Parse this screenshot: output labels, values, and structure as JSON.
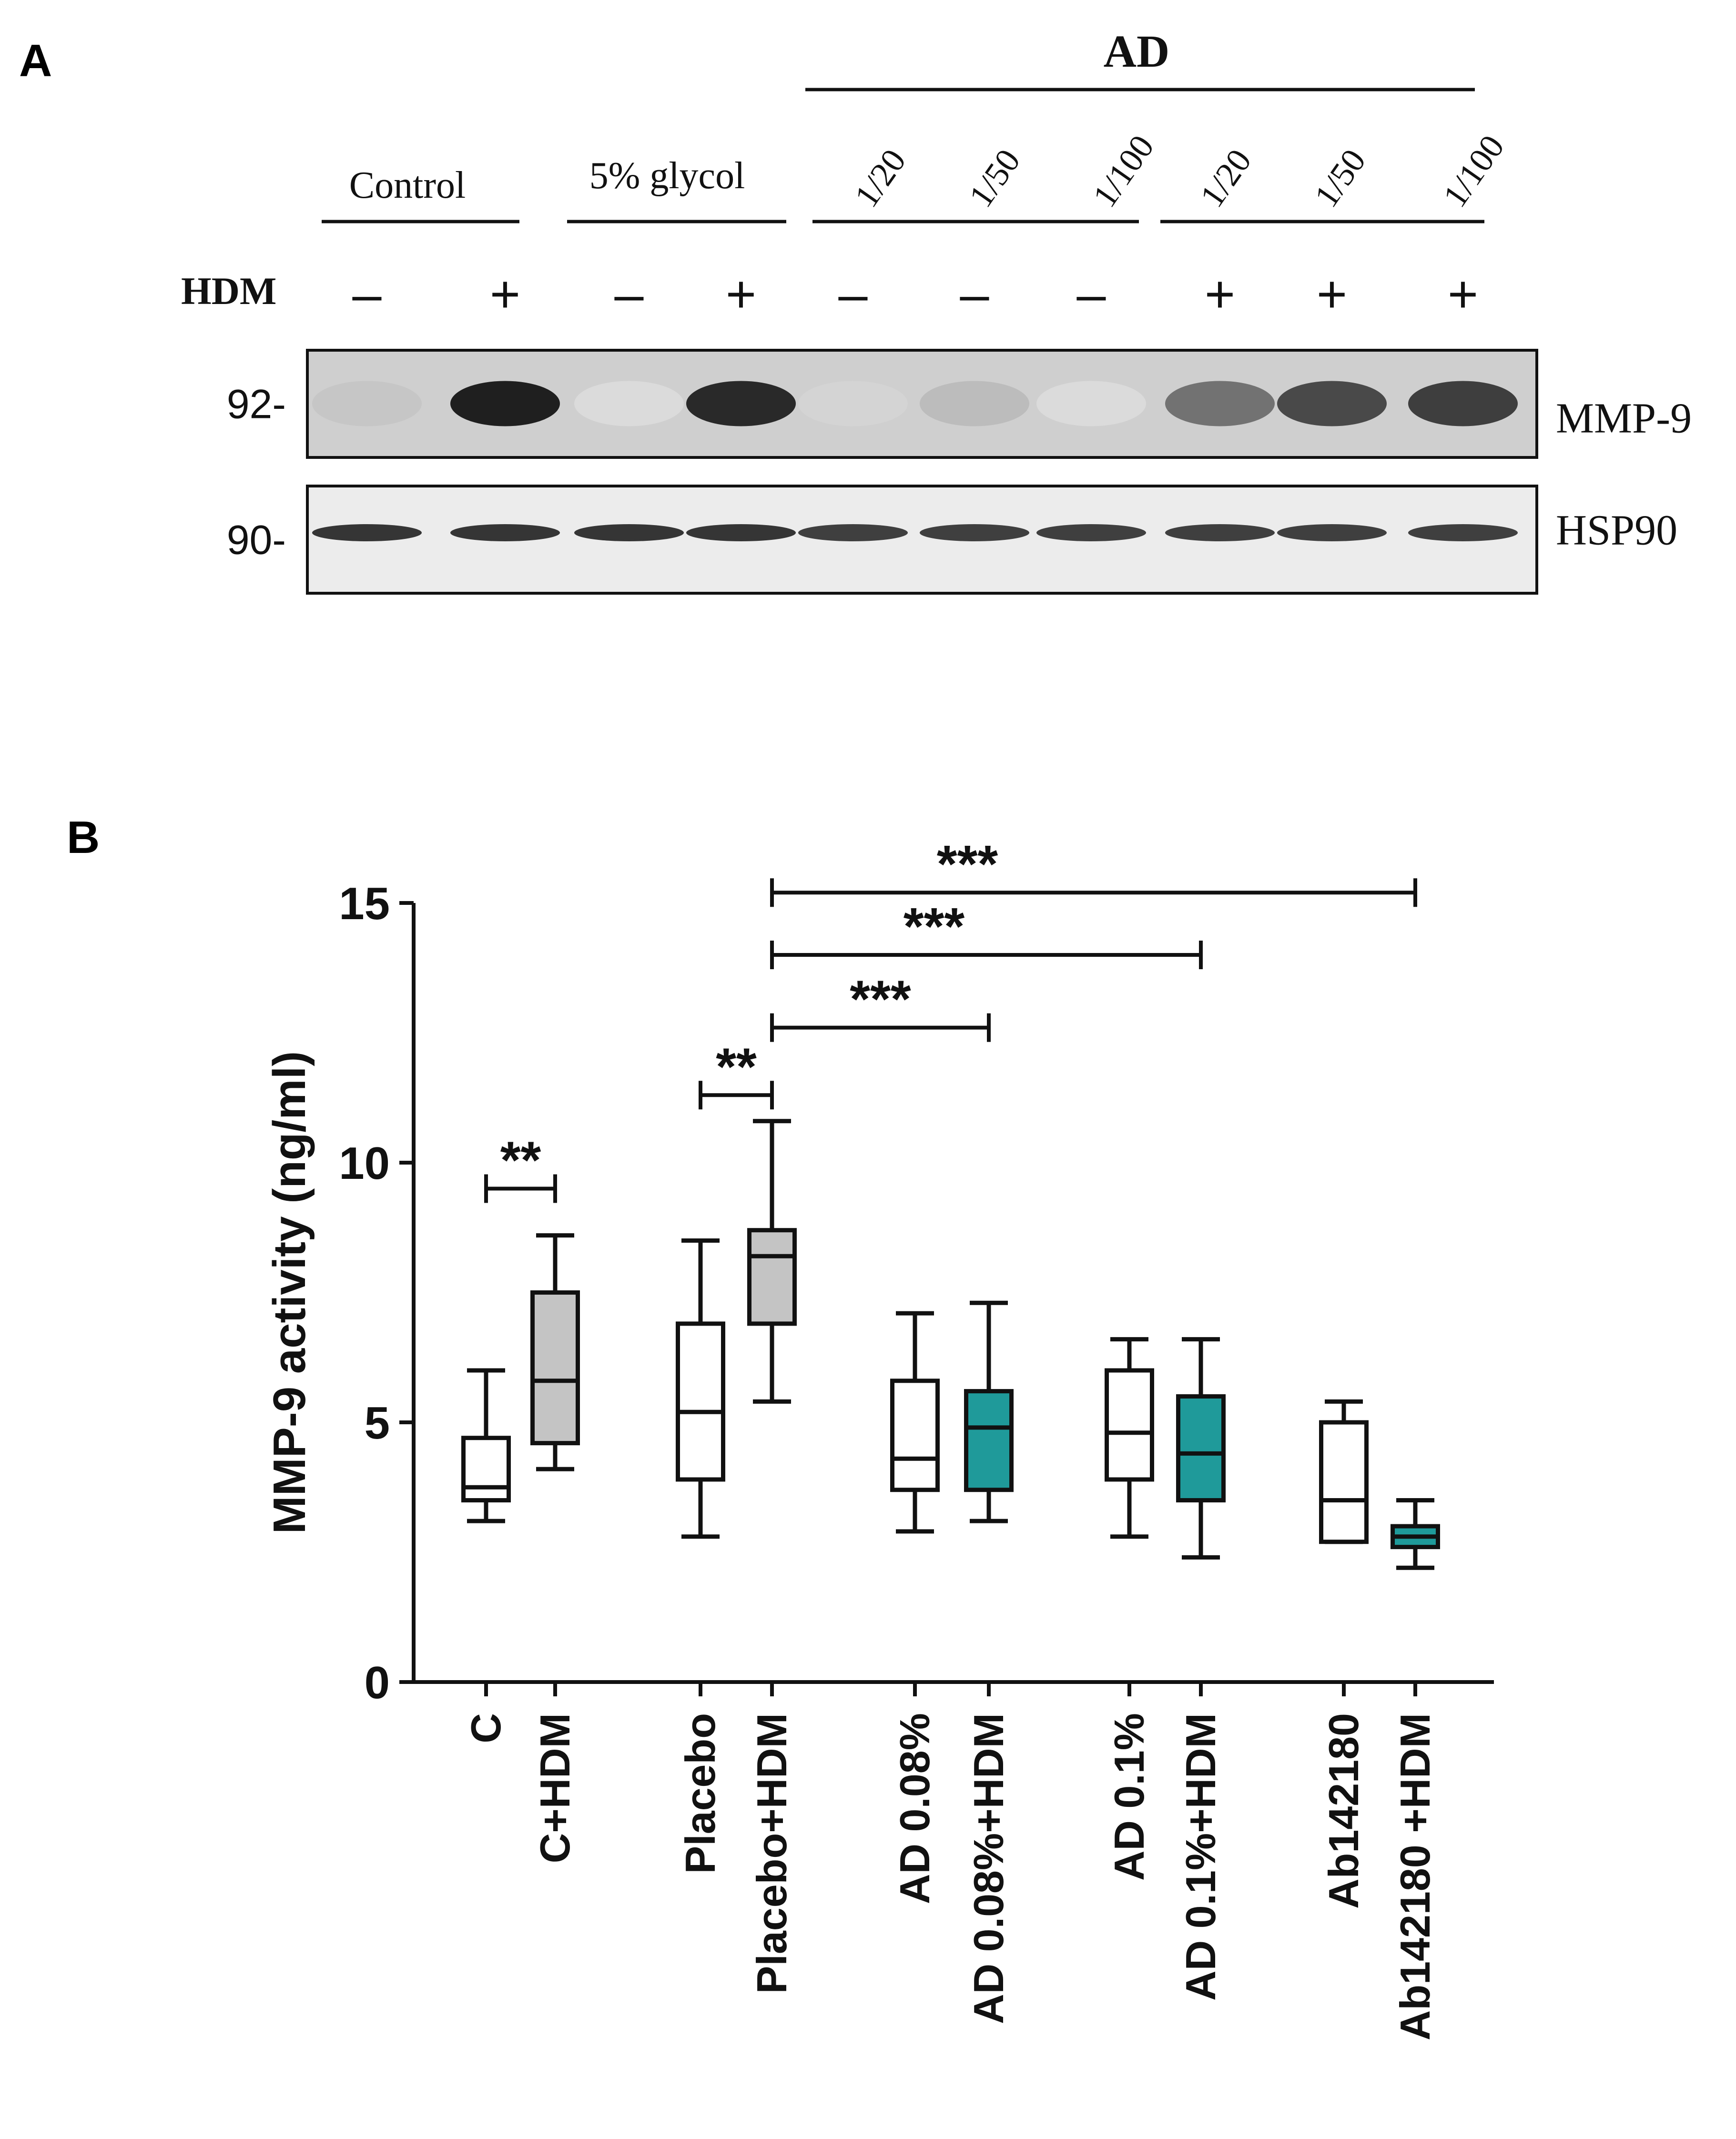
{
  "panel_a": {
    "letter": "A",
    "top_group_label": "AD",
    "groups": [
      "Control",
      "5% glycol"
    ],
    "dilutions": [
      "1/20",
      "1/50",
      "1/100",
      "1/20",
      "1/50",
      "1/100"
    ],
    "hdm_label": "HDM",
    "hdm_signs": [
      "–",
      "+",
      "–",
      "+",
      "–",
      "–",
      "–",
      "+",
      "+",
      "+"
    ],
    "blots": [
      {
        "marker": "92-",
        "protein": "MMP-9",
        "band_intensity": [
          0.15,
          0.95,
          0.05,
          0.9,
          0.08,
          0.2,
          0.05,
          0.55,
          0.75,
          0.8
        ]
      },
      {
        "marker": "90-",
        "protein": "HSP90",
        "band_intensity": [
          0.85,
          0.85,
          0.85,
          0.85,
          0.8,
          0.8,
          0.8,
          0.8,
          0.8,
          0.8
        ]
      }
    ]
  },
  "panel_b": {
    "letter": "B"
  },
  "chart_data": {
    "type": "box",
    "title": "",
    "xlabel": "",
    "ylabel": "MMP-9 activity (ng/ml)",
    "ylim": [
      0,
      15
    ],
    "yticks": [
      0,
      5,
      10,
      15
    ],
    "grid": false,
    "colors": {
      "white": "#ffffff",
      "grey": "#c4c4c4",
      "teal": "#1f9a9a",
      "teal_light": "#2aa7a7"
    },
    "categories": [
      "C",
      "C+HDM",
      "Placebo",
      "Placebo+HDM",
      "AD 0.08%",
      "AD 0.08%+HDM",
      "AD 0.1%",
      "AD 0.1%+HDM",
      "Ab142180",
      "Ab142180 +HDM"
    ],
    "boxes": [
      {
        "label": "C",
        "min": 3.1,
        "q1": 3.5,
        "median": 3.75,
        "q3": 4.7,
        "max": 6.0,
        "fill": "white"
      },
      {
        "label": "C+HDM",
        "min": 4.1,
        "q1": 4.6,
        "median": 5.8,
        "q3": 7.5,
        "max": 8.6,
        "fill": "grey"
      },
      {
        "label": "Placebo",
        "min": 2.8,
        "q1": 3.9,
        "median": 5.2,
        "q3": 6.9,
        "max": 8.5,
        "fill": "white"
      },
      {
        "label": "Placebo+HDM",
        "min": 5.4,
        "q1": 6.9,
        "median": 8.2,
        "q3": 8.7,
        "max": 10.8,
        "fill": "grey"
      },
      {
        "label": "AD 0.08%",
        "min": 2.9,
        "q1": 3.7,
        "median": 4.3,
        "q3": 5.8,
        "max": 7.1,
        "fill": "white"
      },
      {
        "label": "AD 0.08%+HDM",
        "min": 3.1,
        "q1": 3.7,
        "median": 4.9,
        "q3": 5.6,
        "max": 7.3,
        "fill": "teal"
      },
      {
        "label": "AD 0.1%",
        "min": 2.8,
        "q1": 3.9,
        "median": 4.8,
        "q3": 6.0,
        "max": 6.6,
        "fill": "white"
      },
      {
        "label": "AD 0.1%+HDM",
        "min": 2.4,
        "q1": 3.5,
        "median": 4.4,
        "q3": 5.5,
        "max": 6.6,
        "fill": "teal"
      },
      {
        "label": "Ab142180",
        "min": 2.7,
        "q1": 2.7,
        "median": 3.5,
        "q3": 5.0,
        "max": 5.4,
        "fill": "white"
      },
      {
        "label": "Ab142180 +HDM",
        "min": 2.2,
        "q1": 2.6,
        "median": 2.8,
        "q3": 3.0,
        "max": 3.5,
        "fill": "teal"
      }
    ],
    "significance": [
      {
        "from": 0,
        "to": 1,
        "label": "**",
        "y": 9.5
      },
      {
        "from": 2,
        "to": 3,
        "label": "**",
        "y": 11.3
      },
      {
        "from": 3,
        "to": 5,
        "label": "***",
        "y": 12.6
      },
      {
        "from": 3,
        "to": 7,
        "label": "***",
        "y": 14.0
      },
      {
        "from": 3,
        "to": 9,
        "label": "***",
        "y": 15.2
      }
    ]
  }
}
